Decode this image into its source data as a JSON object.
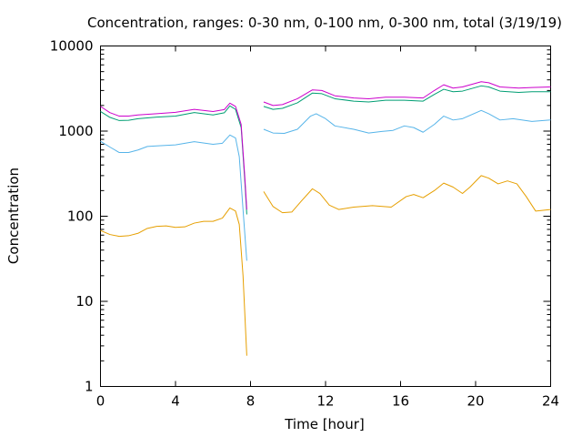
{
  "chart_data": {
    "type": "line",
    "title": "Concentration, ranges: 0-30 nm, 0-100 nm, 0-300 nm, total (3/19/19)",
    "xlabel": "Time [hour]",
    "ylabel": "Concentration",
    "xlim": [
      0,
      24
    ],
    "ylim": [
      1,
      10000
    ],
    "yscale": "log",
    "grid": false,
    "x_ticks": [
      0,
      4,
      8,
      12,
      16,
      20,
      24
    ],
    "x_tick_labels": [
      "0",
      "4",
      "8",
      "12",
      "16",
      "20",
      "24"
    ],
    "y_ticks": [
      1,
      10,
      100,
      1000,
      10000
    ],
    "y_tick_labels": [
      "1",
      "10",
      "100",
      "1000",
      "10000"
    ],
    "series": [
      {
        "color": "#e69f00",
        "segments": [
          [
            [
              0,
              68
            ],
            [
              0.5,
              61
            ],
            [
              1,
              58
            ],
            [
              1.5,
              59
            ],
            [
              2,
              63
            ],
            [
              2.5,
              72
            ],
            [
              3,
              76
            ],
            [
              3.5,
              77
            ],
            [
              4,
              74
            ],
            [
              4.5,
              75
            ],
            [
              5,
              83
            ],
            [
              5.5,
              87
            ],
            [
              6,
              87
            ],
            [
              6.5,
              95
            ],
            [
              6.9,
              125
            ],
            [
              7.2,
              115
            ],
            [
              7.4,
              80
            ],
            [
              7.6,
              20
            ],
            [
              7.8,
              2.3
            ]
          ],
          [
            [
              8.7,
              195
            ],
            [
              9.2,
              130
            ],
            [
              9.7,
              110
            ],
            [
              10.2,
              112
            ],
            [
              10.7,
              150
            ],
            [
              11.3,
              210
            ],
            [
              11.7,
              185
            ],
            [
              12.2,
              135
            ],
            [
              12.7,
              120
            ],
            [
              13.5,
              128
            ],
            [
              14.5,
              133
            ],
            [
              15.5,
              128
            ],
            [
              16.3,
              170
            ],
            [
              16.7,
              180
            ],
            [
              17.2,
              165
            ],
            [
              17.8,
              200
            ],
            [
              18.3,
              245
            ],
            [
              18.8,
              220
            ],
            [
              19.3,
              185
            ],
            [
              19.7,
              220
            ],
            [
              20.3,
              300
            ],
            [
              20.7,
              280
            ],
            [
              21.2,
              240
            ],
            [
              21.7,
              260
            ],
            [
              22.2,
              240
            ],
            [
              22.7,
              170
            ],
            [
              23.2,
              115
            ],
            [
              24,
              120
            ]
          ]
        ]
      },
      {
        "color": "#56b4e9",
        "segments": [
          [
            [
              0,
              760
            ],
            [
              0.5,
              650
            ],
            [
              1,
              560
            ],
            [
              1.5,
              560
            ],
            [
              2,
              600
            ],
            [
              2.5,
              660
            ],
            [
              3,
              670
            ],
            [
              4,
              690
            ],
            [
              5,
              750
            ],
            [
              6,
              700
            ],
            [
              6.5,
              720
            ],
            [
              6.9,
              900
            ],
            [
              7.2,
              830
            ],
            [
              7.4,
              500
            ],
            [
              7.6,
              120
            ],
            [
              7.8,
              30
            ]
          ],
          [
            [
              8.7,
              1050
            ],
            [
              9.2,
              950
            ],
            [
              9.8,
              940
            ],
            [
              10.5,
              1050
            ],
            [
              11.2,
              1500
            ],
            [
              11.5,
              1600
            ],
            [
              12,
              1400
            ],
            [
              12.5,
              1150
            ],
            [
              13.5,
              1050
            ],
            [
              14.3,
              950
            ],
            [
              15,
              990
            ],
            [
              15.6,
              1020
            ],
            [
              16.2,
              1150
            ],
            [
              16.7,
              1100
            ],
            [
              17.2,
              970
            ],
            [
              17.8,
              1200
            ],
            [
              18.3,
              1500
            ],
            [
              18.8,
              1350
            ],
            [
              19.3,
              1400
            ],
            [
              20.3,
              1750
            ],
            [
              20.7,
              1600
            ],
            [
              21.3,
              1350
            ],
            [
              22,
              1400
            ],
            [
              23,
              1300
            ],
            [
              24,
              1350
            ]
          ]
        ]
      },
      {
        "color": "#009e73",
        "segments": [
          [
            [
              0,
              1700
            ],
            [
              0.5,
              1450
            ],
            [
              1,
              1330
            ],
            [
              1.5,
              1340
            ],
            [
              2,
              1400
            ],
            [
              3,
              1460
            ],
            [
              4,
              1500
            ],
            [
              5,
              1650
            ],
            [
              6,
              1550
            ],
            [
              6.6,
              1640
            ],
            [
              6.9,
              1980
            ],
            [
              7.2,
              1800
            ],
            [
              7.5,
              1100
            ],
            [
              7.7,
              250
            ],
            [
              7.8,
              105
            ]
          ],
          [
            [
              8.7,
              1950
            ],
            [
              9.2,
              1800
            ],
            [
              9.7,
              1850
            ],
            [
              10.5,
              2150
            ],
            [
              11.3,
              2800
            ],
            [
              11.8,
              2750
            ],
            [
              12.5,
              2400
            ],
            [
              13.5,
              2250
            ],
            [
              14.3,
              2200
            ],
            [
              15.2,
              2300
            ],
            [
              16.2,
              2300
            ],
            [
              17.2,
              2250
            ],
            [
              17.8,
              2700
            ],
            [
              18.3,
              3100
            ],
            [
              18.8,
              2900
            ],
            [
              19.3,
              2950
            ],
            [
              20.3,
              3400
            ],
            [
              20.7,
              3300
            ],
            [
              21.3,
              2950
            ],
            [
              22.3,
              2850
            ],
            [
              23,
              2900
            ],
            [
              24,
              2900
            ]
          ]
        ]
      },
      {
        "color": "#cc00cc",
        "segments": [
          [
            [
              0,
              1950
            ],
            [
              0.5,
              1650
            ],
            [
              1,
              1500
            ],
            [
              1.5,
              1500
            ],
            [
              2,
              1550
            ],
            [
              3,
              1600
            ],
            [
              4,
              1660
            ],
            [
              5,
              1800
            ],
            [
              6,
              1700
            ],
            [
              6.6,
              1790
            ],
            [
              6.9,
              2130
            ],
            [
              7.2,
              1950
            ],
            [
              7.5,
              1200
            ],
            [
              7.7,
              280
            ],
            [
              7.8,
              120
            ]
          ],
          [
            [
              8.7,
              2200
            ],
            [
              9.2,
              2000
            ],
            [
              9.7,
              2050
            ],
            [
              10.5,
              2400
            ],
            [
              11.3,
              3050
            ],
            [
              11.8,
              3000
            ],
            [
              12.5,
              2600
            ],
            [
              13.5,
              2450
            ],
            [
              14.3,
              2400
            ],
            [
              15.2,
              2500
            ],
            [
              16.2,
              2500
            ],
            [
              17.2,
              2450
            ],
            [
              17.8,
              3000
            ],
            [
              18.3,
              3500
            ],
            [
              18.8,
              3200
            ],
            [
              19.3,
              3300
            ],
            [
              20.3,
              3800
            ],
            [
              20.7,
              3700
            ],
            [
              21.3,
              3300
            ],
            [
              22.3,
              3200
            ],
            [
              23,
              3250
            ],
            [
              24,
              3300
            ]
          ]
        ]
      }
    ]
  }
}
